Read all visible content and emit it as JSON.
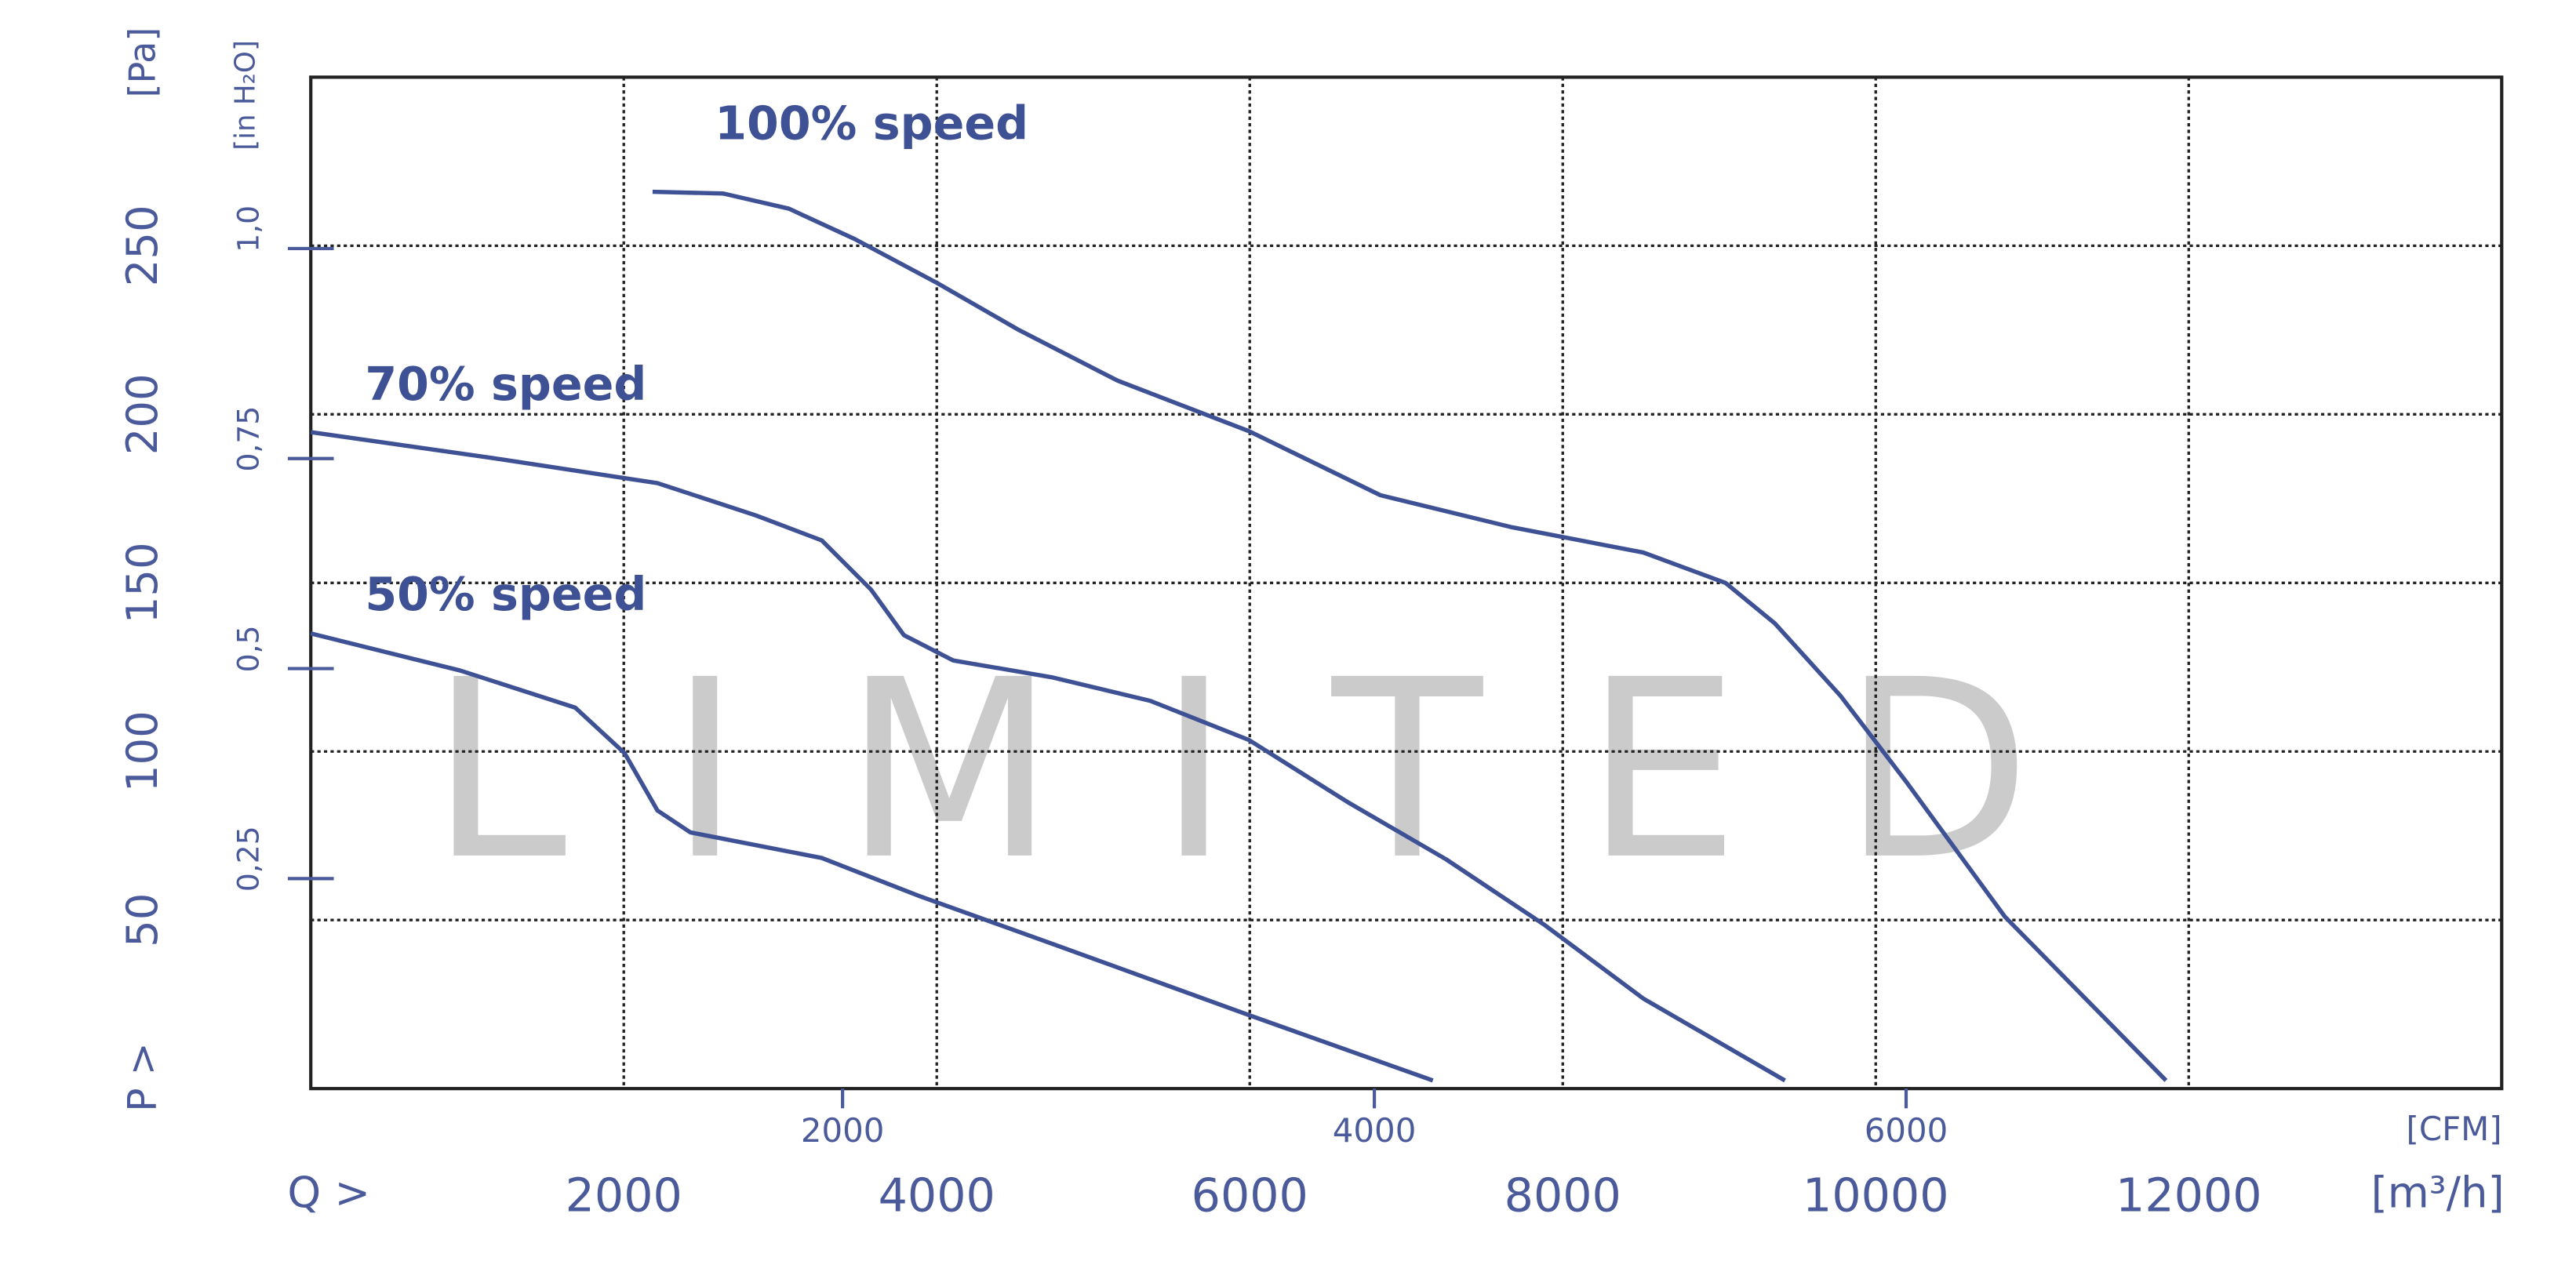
{
  "chart_data": {
    "type": "line",
    "watermark": "LIMITED",
    "xlabel": "Q >",
    "xunit": "[m³/h]",
    "x2label": "[CFM]",
    "ylabel": "P >",
    "yunit": "[Pa]",
    "y2unit": "[in H₂O]",
    "xlim": [
      0,
      14000
    ],
    "xticks": [
      2000,
      4000,
      6000,
      8000,
      10000,
      12000
    ],
    "x2lim": [
      0,
      8240
    ],
    "x2ticks": [
      2000,
      4000,
      6000
    ],
    "ylim": [
      0,
      300
    ],
    "yticks": [
      50,
      100,
      150,
      200,
      250
    ],
    "y2lim": [
      0,
      1.204
    ],
    "y2ticks": [
      {
        "value": 0.25,
        "label": "0,25"
      },
      {
        "value": 0.5,
        "label": "0,5"
      },
      {
        "value": 0.75,
        "label": "0,75"
      },
      {
        "value": 1.0,
        "label": "1,0"
      }
    ],
    "grid": true,
    "color": "#3f5195",
    "series": [
      {
        "name": "100% speed",
        "color": "#3f5195",
        "x": [
          2184,
          2635,
          3055,
          3475,
          4000,
          4525,
          5155,
          5995,
          6835,
          7675,
          8515,
          9040,
          9355,
          9775,
          10195,
          10825,
          11855
        ],
        "values": [
          266,
          265.5,
          261,
          252,
          239,
          225,
          210,
          195,
          176,
          166.5,
          159,
          150,
          138,
          116.5,
          91,
          51,
          2.4
        ]
      },
      {
        "name": "70% speed",
        "color": "#3f5195",
        "x": [
          0,
          1165,
          2215,
          2845,
          3265,
          3580,
          3790,
          4105,
          4735,
          5365,
          5995,
          6625,
          7255,
          7885,
          8515,
          9420
        ],
        "values": [
          194.7,
          187,
          179.6,
          170,
          162.6,
          148,
          134.5,
          127,
          122,
          115,
          103.4,
          85,
          68,
          48.5,
          26.7,
          2.4
        ]
      },
      {
        "name": "50% speed",
        "color": "#3f5195",
        "x": [
          0,
          955,
          1690,
          2005,
          2215,
          2425,
          3265,
          3895,
          4735,
          5995,
          7170
        ],
        "values": [
          135,
          124,
          113,
          99.5,
          82.5,
          76,
          68.4,
          57,
          43,
          21.8,
          2.4
        ]
      }
    ]
  }
}
